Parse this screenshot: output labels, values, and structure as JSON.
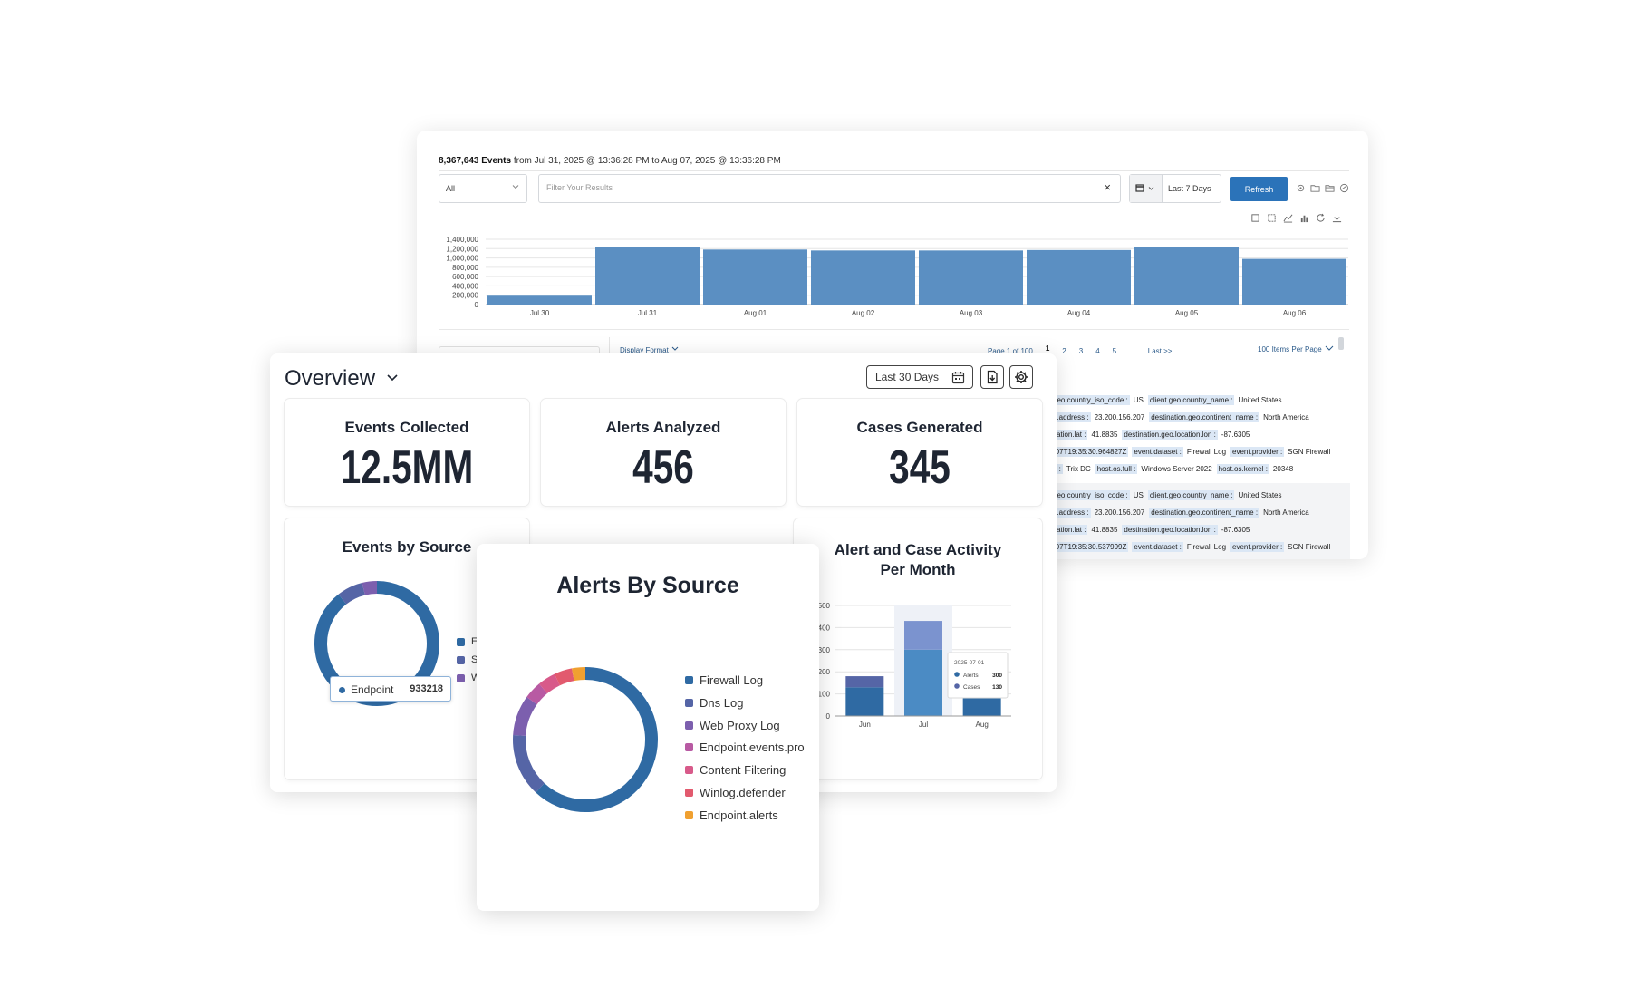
{
  "events_panel": {
    "summary_count": "8,367,643 Events",
    "summary_range": "from Jul 31, 2025 @ 13:36:28 PM to Aug 07, 2025 @ 13:36:28 PM",
    "type_select_value": "All",
    "filter_placeholder": "Filter Your Results",
    "clear_symbol": "×",
    "date_range_label": "Last 7 Days",
    "refresh_label": "Refresh",
    "display_format_label": "Display Format",
    "pagination": {
      "page_info": "Page 1 of 100",
      "pages": [
        "1",
        "2",
        "3",
        "4",
        "5"
      ],
      "ellipsis": "...",
      "last_label": "Last >>",
      "per_page_label": "100 Items Per Page"
    },
    "table_rows": [
      [
        [
          {
            "k": "geo.country_iso_code :"
          },
          {
            "v": "US"
          },
          {
            "k": "client.geo.country_name :"
          },
          {
            "v": "United States"
          }
        ],
        [
          {
            "k": "n.address :"
          },
          {
            "v": "23.200.156.207"
          },
          {
            "k": "destination.geo.continent_name :"
          },
          {
            "v": "North America"
          }
        ],
        [
          {
            "k": "cation.lat :"
          },
          {
            "v": "41.8835"
          },
          {
            "k": "destination.geo.location.lon :"
          },
          {
            "v": "-87.6305"
          }
        ],
        [
          {
            "k": "-07T19:35:30.964827Z"
          },
          {
            "k": "event.dataset :"
          },
          {
            "v": "Firewall Log"
          },
          {
            "k": "event.provider :"
          },
          {
            "v": "SGN Firewall"
          }
        ],
        [
          {
            "k": "e :"
          },
          {
            "v": "Trix DC"
          },
          {
            "k": "host.os.full :"
          },
          {
            "v": "Windows Server 2022"
          },
          {
            "k": "host.os.kernel :"
          },
          {
            "v": "20348"
          }
        ]
      ],
      [
        [
          {
            "k": "geo.country_iso_code :"
          },
          {
            "v": "US"
          },
          {
            "k": "client.geo.country_name :"
          },
          {
            "v": "United States"
          }
        ],
        [
          {
            "k": "n.address :"
          },
          {
            "v": "23.200.156.207"
          },
          {
            "k": "destination.geo.continent_name :"
          },
          {
            "v": "North America"
          }
        ],
        [
          {
            "k": "cation.lat :"
          },
          {
            "v": "41.8835"
          },
          {
            "k": "destination.geo.location.lon :"
          },
          {
            "v": "-87.6305"
          }
        ],
        [
          {
            "k": "-07T19:35:30.537999Z"
          },
          {
            "k": "event.dataset :"
          },
          {
            "v": "Firewall Log"
          },
          {
            "k": "event.provider :"
          },
          {
            "v": "SGN Firewall"
          }
        ]
      ]
    ]
  },
  "overview": {
    "title": "Overview",
    "range_label": "Last 30 Days",
    "stats": [
      {
        "label": "Events Collected",
        "value": "12.5MM"
      },
      {
        "label": "Alerts Analyzed",
        "value": "456"
      },
      {
        "label": "Cases Generated",
        "value": "345"
      }
    ],
    "events_by_source": {
      "title": "Events by Source",
      "legend_partial": [
        "E",
        "S",
        "W"
      ],
      "tooltip_name": "Endpoint",
      "tooltip_value": "933218"
    },
    "activity": {
      "title_line1": "Alert and Case Activity",
      "title_line2": "Per Month",
      "tooltip_date": "2025-07-01",
      "tooltip_rows": [
        {
          "name": "Alerts",
          "value": "300"
        },
        {
          "name": "Cases",
          "value": "130"
        }
      ]
    }
  },
  "alerts_panel": {
    "title": "Alerts By Source"
  },
  "colors": {
    "bar_blue": "#5b8fc2",
    "refresh_blue": "#2b73b9",
    "firewall": "#2f6aa3",
    "dns": "#5565a6",
    "webproxy": "#7c5fae",
    "endpoint_events": "#b85aa3",
    "content_filtering": "#d85a8a",
    "winlog": "#e25a6e",
    "endpoint_alerts": "#f0a030"
  },
  "chart_data": [
    {
      "type": "bar",
      "title": "",
      "categories": [
        "Jul 30",
        "Jul 31",
        "Aug 01",
        "Aug 02",
        "Aug 03",
        "Aug 04",
        "Aug 05",
        "Aug 06"
      ],
      "values": [
        190000,
        1230000,
        1180000,
        1160000,
        1160000,
        1170000,
        1240000,
        980000
      ],
      "y_ticks": [
        "1,400,000",
        "1,200,000",
        "1,000,000",
        "800,000",
        "600,000",
        "400,000",
        "200,000",
        "0"
      ],
      "ylim": [
        0,
        1400000
      ],
      "grid": true
    },
    {
      "type": "pie",
      "title": "Events by Source",
      "labels": [
        "Endpoint",
        "S",
        "W"
      ],
      "values": [
        933218,
        70000,
        40000
      ],
      "colors": [
        "#2f6aa3",
        "#5565a6",
        "#7c5fae"
      ]
    },
    {
      "type": "pie",
      "title": "Alerts By Source",
      "labels": [
        "Firewall Log",
        "Dns Log",
        "Web Proxy Log",
        "Endpoint.events.pro",
        "Content Filtering",
        "Winlog.defender",
        "Endpoint.alerts"
      ],
      "values": [
        62,
        14,
        9,
        4,
        4,
        4,
        3
      ],
      "colors": [
        "#2f6aa3",
        "#5565a6",
        "#7c5fae",
        "#b85aa3",
        "#d85a8a",
        "#e25a6e",
        "#f0a030"
      ]
    },
    {
      "type": "bar",
      "stacked": true,
      "title": "Alert and Case Activity Per Month",
      "categories": [
        "Jun",
        "Jul",
        "Aug"
      ],
      "series": [
        {
          "name": "Alerts",
          "values": [
            130,
            300,
            100
          ],
          "color": "#2f6aa3"
        },
        {
          "name": "Cases",
          "values": [
            50,
            130,
            0
          ],
          "color": "#5565a6"
        }
      ],
      "y_ticks": [
        "500",
        "400",
        "300",
        "200",
        "100",
        "0"
      ],
      "ylim": [
        0,
        500
      ],
      "grid": true
    }
  ]
}
